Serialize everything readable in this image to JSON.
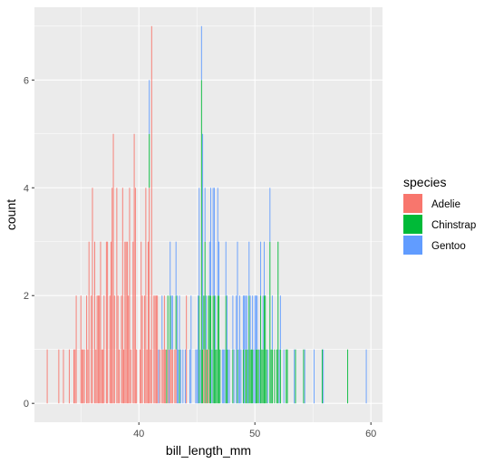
{
  "chart_data": {
    "type": "bar",
    "subtype": "stacked-histogram",
    "title": "",
    "xlabel": "bill_length_mm",
    "ylabel": "count",
    "xlim": [
      31,
      61
    ],
    "ylim": [
      -0.35,
      7.35
    ],
    "x_ticks": [
      40,
      50,
      60
    ],
    "y_ticks": [
      0,
      2,
      4,
      6
    ],
    "grid": true,
    "legend": {
      "title": "species",
      "position": "right"
    },
    "background": "#EBEBEB",
    "series": [
      {
        "name": "Adelie",
        "color": "#F8766D",
        "points": [
          [
            32.1,
            1
          ],
          [
            33.1,
            1
          ],
          [
            33.5,
            1
          ],
          [
            34.0,
            1
          ],
          [
            34.4,
            1
          ],
          [
            34.5,
            1
          ],
          [
            34.6,
            2
          ],
          [
            35.0,
            2
          ],
          [
            35.1,
            1
          ],
          [
            35.2,
            1
          ],
          [
            35.3,
            1
          ],
          [
            35.5,
            2
          ],
          [
            35.6,
            1
          ],
          [
            35.7,
            3
          ],
          [
            35.9,
            2
          ],
          [
            36.0,
            4
          ],
          [
            36.2,
            3
          ],
          [
            36.3,
            1
          ],
          [
            36.4,
            2
          ],
          [
            36.5,
            2
          ],
          [
            36.6,
            2
          ],
          [
            36.7,
            3
          ],
          [
            36.8,
            1
          ],
          [
            36.9,
            1
          ],
          [
            37.0,
            2
          ],
          [
            37.2,
            3
          ],
          [
            37.3,
            3
          ],
          [
            37.5,
            2
          ],
          [
            37.6,
            3
          ],
          [
            37.7,
            4
          ],
          [
            37.8,
            5
          ],
          [
            37.9,
            2
          ],
          [
            38.1,
            4
          ],
          [
            38.2,
            2
          ],
          [
            38.3,
            1
          ],
          [
            38.5,
            2
          ],
          [
            38.6,
            4
          ],
          [
            38.7,
            1
          ],
          [
            38.8,
            3
          ],
          [
            38.9,
            3
          ],
          [
            39.0,
            3
          ],
          [
            39.1,
            2
          ],
          [
            39.2,
            4
          ],
          [
            39.3,
            1
          ],
          [
            39.5,
            3
          ],
          [
            39.6,
            5
          ],
          [
            39.7,
            4
          ],
          [
            39.8,
            1
          ],
          [
            40.1,
            1
          ],
          [
            40.2,
            3
          ],
          [
            40.3,
            2
          ],
          [
            40.5,
            2
          ],
          [
            40.6,
            4
          ],
          [
            40.7,
            1
          ],
          [
            40.8,
            3
          ],
          [
            40.9,
            4
          ],
          [
            41.0,
            1
          ],
          [
            41.1,
            7
          ],
          [
            41.3,
            2
          ],
          [
            41.4,
            2
          ],
          [
            41.5,
            2
          ],
          [
            41.6,
            2
          ],
          [
            41.8,
            1
          ],
          [
            42.0,
            1
          ],
          [
            42.1,
            1
          ],
          [
            42.2,
            2
          ],
          [
            42.3,
            1
          ],
          [
            42.5,
            1
          ],
          [
            42.7,
            1
          ],
          [
            42.8,
            1
          ],
          [
            42.9,
            1
          ],
          [
            43.1,
            1
          ],
          [
            43.2,
            1
          ],
          [
            44.1,
            2
          ],
          [
            45.6,
            1
          ],
          [
            45.8,
            1
          ],
          [
            46.0,
            1
          ]
        ]
      },
      {
        "name": "Chinstrap",
        "color": "#00BA38",
        "points": [
          [
            40.9,
            1
          ],
          [
            42.4,
            1
          ],
          [
            42.5,
            1
          ],
          [
            42.7,
            1
          ],
          [
            43.2,
            1
          ],
          [
            43.5,
            1
          ],
          [
            45.2,
            2
          ],
          [
            45.4,
            6
          ],
          [
            45.5,
            1
          ],
          [
            45.6,
            1
          ],
          [
            45.7,
            3
          ],
          [
            45.9,
            1
          ],
          [
            46.0,
            1
          ],
          [
            46.1,
            2
          ],
          [
            46.2,
            2
          ],
          [
            46.4,
            2
          ],
          [
            46.5,
            2
          ],
          [
            46.6,
            1
          ],
          [
            46.7,
            1
          ],
          [
            46.8,
            2
          ],
          [
            46.9,
            2
          ],
          [
            47.0,
            1
          ],
          [
            47.5,
            2
          ],
          [
            47.6,
            1
          ],
          [
            48.1,
            1
          ],
          [
            48.5,
            1
          ],
          [
            49.0,
            1
          ],
          [
            49.2,
            1
          ],
          [
            49.3,
            1
          ],
          [
            49.5,
            2
          ],
          [
            49.6,
            1
          ],
          [
            49.7,
            1
          ],
          [
            49.8,
            1
          ],
          [
            50.1,
            1
          ],
          [
            50.2,
            1
          ],
          [
            50.3,
            1
          ],
          [
            50.5,
            2
          ],
          [
            50.6,
            1
          ],
          [
            50.7,
            1
          ],
          [
            50.8,
            2
          ],
          [
            50.9,
            2
          ],
          [
            51.0,
            1
          ],
          [
            51.3,
            3
          ],
          [
            51.4,
            1
          ],
          [
            51.5,
            1
          ],
          [
            51.7,
            1
          ],
          [
            51.9,
            1
          ],
          [
            52.0,
            3
          ],
          [
            52.2,
            1
          ],
          [
            52.7,
            1
          ],
          [
            52.8,
            1
          ],
          [
            53.5,
            1
          ],
          [
            54.2,
            1
          ],
          [
            55.8,
            1
          ],
          [
            58.0,
            1
          ]
        ]
      },
      {
        "name": "Gentoo",
        "color": "#619CFF",
        "points": [
          [
            40.9,
            1
          ],
          [
            41.7,
            1
          ],
          [
            42.0,
            1
          ],
          [
            42.6,
            1
          ],
          [
            42.7,
            1
          ],
          [
            42.8,
            1
          ],
          [
            42.9,
            1
          ],
          [
            43.2,
            1
          ],
          [
            43.3,
            2
          ],
          [
            43.4,
            1
          ],
          [
            43.5,
            1
          ],
          [
            43.6,
            1
          ],
          [
            43.8,
            1
          ],
          [
            44.0,
            1
          ],
          [
            44.4,
            1
          ],
          [
            44.5,
            2
          ],
          [
            44.9,
            1
          ],
          [
            45.0,
            1
          ],
          [
            45.1,
            2
          ],
          [
            45.2,
            2
          ],
          [
            45.3,
            1
          ],
          [
            45.4,
            1
          ],
          [
            45.5,
            4
          ],
          [
            45.7,
            1
          ],
          [
            45.8,
            1
          ],
          [
            46.1,
            1
          ],
          [
            46.2,
            2
          ],
          [
            46.3,
            1
          ],
          [
            46.4,
            2
          ],
          [
            46.5,
            2
          ],
          [
            46.6,
            1
          ],
          [
            46.8,
            2
          ],
          [
            46.9,
            1
          ],
          [
            47.2,
            1
          ],
          [
            47.3,
            1
          ],
          [
            47.4,
            1
          ],
          [
            47.5,
            1
          ],
          [
            47.6,
            1
          ],
          [
            47.7,
            1
          ],
          [
            47.8,
            1
          ],
          [
            48.1,
            1
          ],
          [
            48.2,
            1
          ],
          [
            48.4,
            2
          ],
          [
            48.5,
            2
          ],
          [
            48.6,
            1
          ],
          [
            48.7,
            2
          ],
          [
            48.8,
            1
          ],
          [
            49.0,
            1
          ],
          [
            49.1,
            2
          ],
          [
            49.2,
            1
          ],
          [
            49.3,
            1
          ],
          [
            49.4,
            1
          ],
          [
            49.5,
            1
          ],
          [
            49.6,
            1
          ],
          [
            49.8,
            1
          ],
          [
            49.9,
            1
          ],
          [
            50.0,
            2
          ],
          [
            50.1,
            1
          ],
          [
            50.2,
            1
          ],
          [
            50.4,
            1
          ],
          [
            50.5,
            1
          ],
          [
            50.7,
            1
          ],
          [
            50.8,
            1
          ],
          [
            51.1,
            1
          ],
          [
            51.3,
            1
          ],
          [
            51.5,
            1
          ],
          [
            52.1,
            1
          ],
          [
            52.2,
            1
          ],
          [
            52.5,
            1
          ],
          [
            53.4,
            1
          ],
          [
            54.3,
            1
          ],
          [
            55.1,
            1
          ],
          [
            55.9,
            1
          ],
          [
            59.6,
            1
          ]
        ]
      }
    ]
  }
}
